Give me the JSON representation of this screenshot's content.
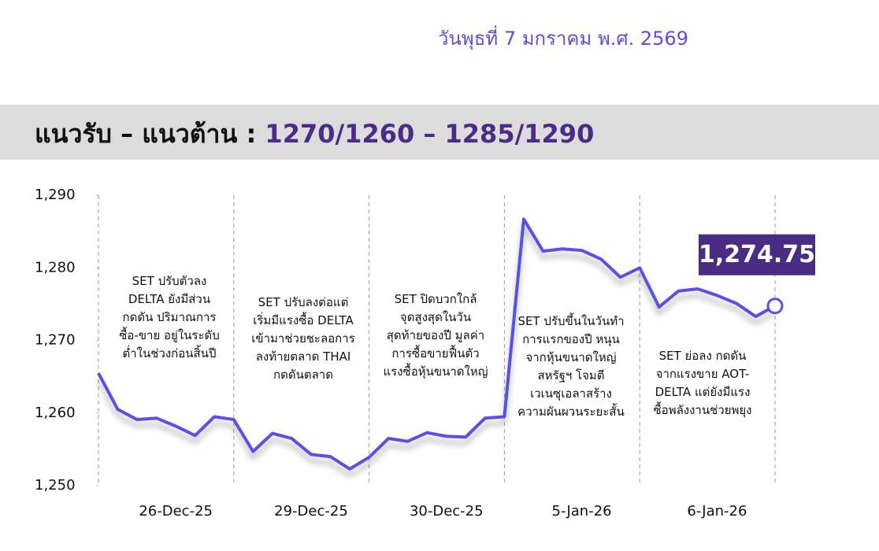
{
  "header": {
    "date": "วันพุธที่ 7 มกราคม พ.ศ. 2569",
    "label": "แนวรับ – แนวต้าน :",
    "levels": "1270/1260 – 1285/1290"
  },
  "chart_data": {
    "type": "line",
    "color": "#5b50e6",
    "categories": [
      null,
      null,
      null,
      null,
      "26-Dec-25",
      null,
      null,
      null,
      null,
      null,
      null,
      "29-Dec-25",
      null,
      null,
      null,
      null,
      null,
      null,
      "30-Dec-25",
      null,
      null,
      null,
      null,
      null,
      null,
      "5-Jan-26",
      null,
      null,
      null,
      null,
      null,
      null,
      "6-Jan-26",
      null,
      null,
      null
    ],
    "values": [
      1265.5,
      1260.5,
      1259.1,
      1259.3,
      1258.2,
      1256.9,
      1259.5,
      1259.1,
      1254.7,
      1257.2,
      1256.5,
      1254.3,
      1254.0,
      1252.3,
      1253.9,
      1256.5,
      1256.1,
      1257.3,
      1256.8,
      1256.7,
      1259.3,
      1259.5,
      1286.7,
      1282.3,
      1282.6,
      1282.4,
      1281.2,
      1278.7,
      1280.0,
      1274.6,
      1276.8,
      1277.1,
      1276.2,
      1275.1,
      1273.3,
      1274.75
    ],
    "value_labels": [
      null,
      null,
      null,
      null,
      null,
      null,
      null,
      null,
      null,
      null,
      null,
      null,
      null,
      null,
      null,
      null,
      null,
      null,
      null,
      null,
      null,
      null,
      null,
      null,
      null,
      null,
      null,
      null,
      null,
      null,
      null,
      null,
      null,
      null,
      null,
      "1,274.75"
    ],
    "ylim": [
      1250,
      1290
    ],
    "yticks": [
      {
        "value": 1250,
        "label": "1,250"
      },
      {
        "value": 1260,
        "label": "1,260"
      },
      {
        "value": 1270,
        "label": "1,270"
      },
      {
        "value": 1280,
        "label": "1,280"
      },
      {
        "value": 1290,
        "label": "1,290"
      }
    ],
    "annotations": [
      [
        "SET ปรับตัวลง",
        "DELTA ยังมีส่วน",
        "กดดัน ปริมาณการ",
        "ซื้อ-ขาย อยู่ในระดับ",
        "ต่ำในช่วงก่อนสิ้นปี"
      ],
      [
        "SET ปรับลงต่อแต่",
        "เริ่มมีแรงซื้อ DELTA",
        "เข้ามาช่วยชะลอการ",
        "ลงท้ายตลาด THAI",
        "กดดันตลาด"
      ],
      [
        "SET ปิดบวกใกล้",
        "จุดสูงสุดในวัน",
        "สุดท้ายของปี มูลค่า",
        "การซื้อขายฟื้นตัว",
        "แรงซื้อหุ้นขนาดใหญ่"
      ],
      [
        "SET ปรับขึ้นในวันทำ",
        "การแรกของปี หนุน",
        "จากหุ้นขนาดใหญ่",
        "สหรัฐฯ โจมตี",
        "เวเนซุเอลาสร้าง",
        "ความผันผวนระยะสั้น"
      ],
      [
        "SET ย่อลง กดดัน",
        "จากแรงขาย AOT-",
        "DELTA แต่ยังมีแรง",
        "ซื้อพลังงานช่วยพยุง"
      ]
    ]
  }
}
